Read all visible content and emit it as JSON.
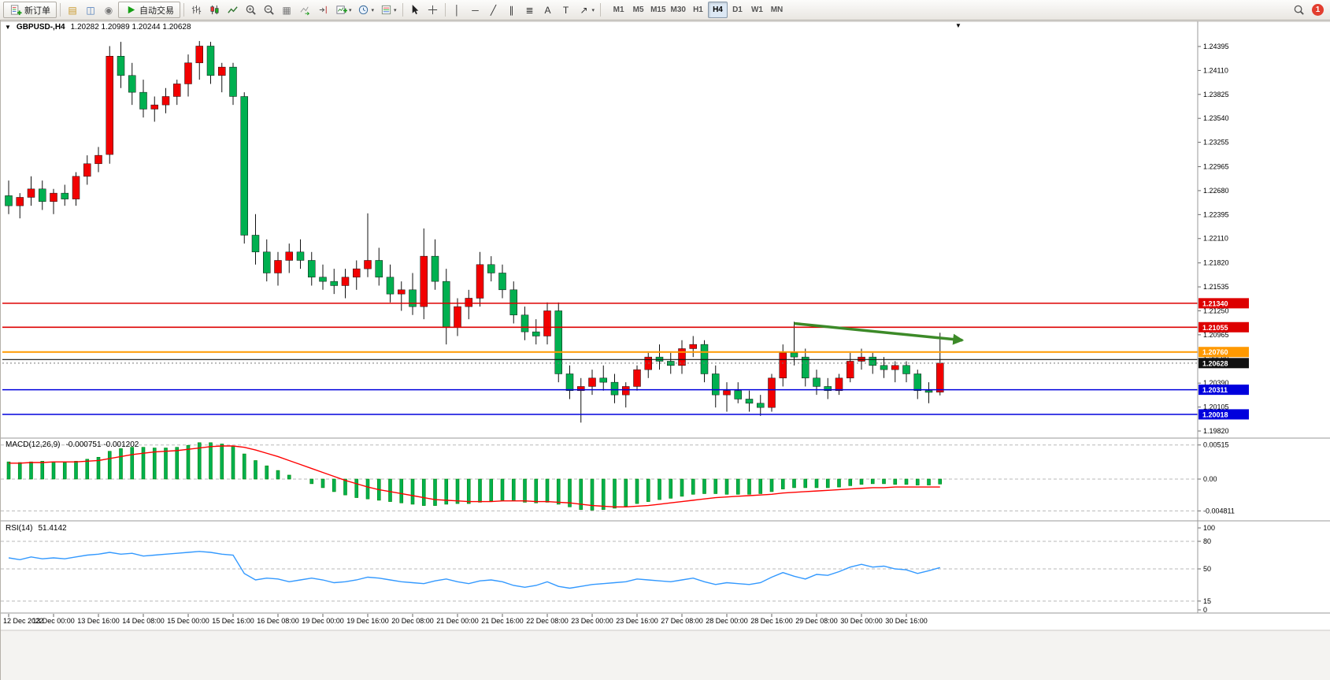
{
  "toolbar": {
    "new_order_label": "新订单",
    "auto_trading_label": "自动交易",
    "timeframes": [
      "M1",
      "M5",
      "M15",
      "M30",
      "H1",
      "H4",
      "D1",
      "W1",
      "MN"
    ],
    "active_timeframe": "H4",
    "notification_count": "1",
    "icon_buttons": [
      "new-order",
      "market-watch",
      "data-window",
      "navigator",
      "auto-trading",
      "bar-chart",
      "candlestick-chart",
      "line-chart",
      "zoom-in",
      "zoom-out",
      "tile-windows",
      "auto-scroll",
      "chart-shift",
      "new-chart",
      "periods",
      "templates",
      "cursor",
      "crosshair",
      "vertical-line",
      "horizontal-line",
      "trendline",
      "equidistant-channel",
      "fibonacci",
      "text",
      "text-label",
      "arrows",
      "search",
      "notifications"
    ]
  },
  "chart": {
    "title_symbol": "GBPUSD-,H4",
    "title_ohlc": "1.20282 1.20989 1.20244 1.20628",
    "macd_label": "MACD(12,26,9)",
    "macd_values": "-0.000751 -0.001202",
    "rsi_label": "RSI(14)",
    "rsi_value": "51.4142",
    "price_axis": [
      "1.24395",
      "1.24110",
      "1.23825",
      "1.23540",
      "1.23255",
      "1.22965",
      "1.22680",
      "1.22395",
      "1.22110",
      "1.21820",
      "1.21535",
      "1.21250",
      "1.20965",
      "1.20680",
      "1.20390",
      "1.20105",
      "1.19820"
    ],
    "price_tags": [
      {
        "text": "1.21340",
        "price": 1.2134,
        "bg": "#DD0000"
      },
      {
        "text": "1.21055",
        "price": 1.21055,
        "bg": "#DD0000"
      },
      {
        "text": "1.20760",
        "price": 1.2076,
        "bg": "#FF9900"
      },
      {
        "text": "1.20628",
        "price": 1.20628,
        "bg": "#111111"
      },
      {
        "text": "1.20311",
        "price": 1.20311,
        "bg": "#0000DD"
      },
      {
        "text": "1.20018",
        "price": 1.20018,
        "bg": "#0000DD"
      }
    ],
    "time_axis": [
      "12 Dec 2022",
      "13 Dec 00:00",
      "13 Dec 16:00",
      "14 Dec 08:00",
      "15 Dec 00:00",
      "15 Dec 16:00",
      "16 Dec 08:00",
      "19 Dec 00:00",
      "19 Dec 16:00",
      "20 Dec 08:00",
      "21 Dec 00:00",
      "21 Dec 16:00",
      "22 Dec 08:00",
      "23 Dec 00:00",
      "23 Dec 16:00",
      "27 Dec 08:00",
      "28 Dec 00:00",
      "28 Dec 16:00",
      "29 Dec 08:00",
      "30 Dec 00:00",
      "30 Dec 16:00"
    ]
  },
  "chart_data": {
    "type": "candlestick",
    "symbol": "GBPUSD-",
    "timeframe": "H4",
    "current_bar": {
      "open": 1.20282,
      "high": 1.20989,
      "low": 1.20244,
      "close": 1.20628
    },
    "candles": [
      [
        1.2262,
        1.228,
        1.224,
        1.225
      ],
      [
        1.225,
        1.2265,
        1.2235,
        1.226
      ],
      [
        1.226,
        1.2285,
        1.225,
        1.227
      ],
      [
        1.227,
        1.228,
        1.2245,
        1.2255
      ],
      [
        1.2255,
        1.227,
        1.224,
        1.2265
      ],
      [
        1.2265,
        1.2275,
        1.225,
        1.2258
      ],
      [
        1.2258,
        1.229,
        1.225,
        1.2285
      ],
      [
        1.2285,
        1.231,
        1.2275,
        1.23
      ],
      [
        1.23,
        1.232,
        1.229,
        1.231
      ],
      [
        1.2311,
        1.244,
        1.23,
        1.2428
      ],
      [
        1.2428,
        1.2445,
        1.239,
        1.2405
      ],
      [
        1.2405,
        1.242,
        1.237,
        1.2385
      ],
      [
        1.2385,
        1.24,
        1.2355,
        1.2365
      ],
      [
        1.2365,
        1.238,
        1.235,
        1.237
      ],
      [
        1.237,
        1.239,
        1.236,
        1.238
      ],
      [
        1.238,
        1.24,
        1.237,
        1.2395
      ],
      [
        1.2395,
        1.243,
        1.238,
        1.242
      ],
      [
        1.242,
        1.2446,
        1.24,
        1.244
      ],
      [
        1.244,
        1.2445,
        1.2395,
        1.2405
      ],
      [
        1.2405,
        1.242,
        1.2385,
        1.2415
      ],
      [
        1.2415,
        1.242,
        1.237,
        1.238
      ],
      [
        1.238,
        1.2385,
        1.2205,
        1.2215
      ],
      [
        1.2215,
        1.224,
        1.218,
        1.2195
      ],
      [
        1.2195,
        1.221,
        1.216,
        1.217
      ],
      [
        1.217,
        1.2195,
        1.2155,
        1.2185
      ],
      [
        1.2185,
        1.2205,
        1.217,
        1.2195
      ],
      [
        1.2195,
        1.221,
        1.2175,
        1.2185
      ],
      [
        1.2185,
        1.2195,
        1.2155,
        1.2165
      ],
      [
        1.2165,
        1.218,
        1.215,
        1.216
      ],
      [
        1.216,
        1.2175,
        1.2145,
        1.2155
      ],
      [
        1.2155,
        1.2175,
        1.214,
        1.2165
      ],
      [
        1.2165,
        1.2185,
        1.215,
        1.2175
      ],
      [
        1.2175,
        1.2241,
        1.2165,
        1.2185
      ],
      [
        1.2185,
        1.22,
        1.2155,
        1.2165
      ],
      [
        1.2165,
        1.218,
        1.2135,
        1.2145
      ],
      [
        1.2145,
        1.216,
        1.2125,
        1.215
      ],
      [
        1.215,
        1.217,
        1.212,
        1.213
      ],
      [
        1.213,
        1.2223,
        1.2115,
        1.219
      ],
      [
        1.219,
        1.221,
        1.215,
        1.216
      ],
      [
        1.216,
        1.2175,
        1.2085,
        1.2105
      ],
      [
        1.2105,
        1.214,
        1.2095,
        1.213
      ],
      [
        1.213,
        1.215,
        1.2115,
        1.214
      ],
      [
        1.214,
        1.2195,
        1.213,
        1.218
      ],
      [
        1.218,
        1.219,
        1.216,
        1.217
      ],
      [
        1.217,
        1.218,
        1.214,
        1.215
      ],
      [
        1.215,
        1.216,
        1.211,
        1.212
      ],
      [
        1.212,
        1.213,
        1.209,
        1.21
      ],
      [
        1.21,
        1.2115,
        1.2085,
        1.2095
      ],
      [
        1.2095,
        1.2135,
        1.2085,
        1.2125
      ],
      [
        1.2125,
        1.2135,
        1.204,
        1.205
      ],
      [
        1.205,
        1.206,
        1.202,
        1.203
      ],
      [
        1.203,
        1.2045,
        1.1992,
        1.2035
      ],
      [
        1.2035,
        1.2055,
        1.2025,
        1.2045
      ],
      [
        1.2045,
        1.206,
        1.203,
        1.204
      ],
      [
        1.204,
        1.205,
        1.2015,
        1.2025
      ],
      [
        1.2025,
        1.204,
        1.201,
        1.2035
      ],
      [
        1.2035,
        1.206,
        1.203,
        1.2055
      ],
      [
        1.2055,
        1.2075,
        1.2045,
        1.207
      ],
      [
        1.207,
        1.2085,
        1.2055,
        1.2065
      ],
      [
        1.2065,
        1.2075,
        1.205,
        1.206
      ],
      [
        1.206,
        1.209,
        1.205,
        1.208
      ],
      [
        1.208,
        1.2095,
        1.207,
        1.2085
      ],
      [
        1.2085,
        1.209,
        1.204,
        1.205
      ],
      [
        1.205,
        1.206,
        1.201,
        1.2025
      ],
      [
        1.2025,
        1.204,
        1.2005,
        1.203
      ],
      [
        1.203,
        1.204,
        1.2015,
        1.202
      ],
      [
        1.202,
        1.203,
        1.2005,
        1.2015
      ],
      [
        1.2015,
        1.2025,
        1.2,
        1.201
      ],
      [
        1.201,
        1.205,
        1.2005,
        1.2045
      ],
      [
        1.2045,
        1.2085,
        1.2035,
        1.2075
      ],
      [
        1.2075,
        1.2112,
        1.206,
        1.207
      ],
      [
        1.207,
        1.208,
        1.2035,
        1.2045
      ],
      [
        1.2045,
        1.2055,
        1.2025,
        1.2035
      ],
      [
        1.2035,
        1.2045,
        1.202,
        1.203
      ],
      [
        1.203,
        1.205,
        1.2025,
        1.2045
      ],
      [
        1.2045,
        1.2075,
        1.204,
        1.2065
      ],
      [
        1.2065,
        1.208,
        1.2055,
        1.207
      ],
      [
        1.207,
        1.2075,
        1.205,
        1.206
      ],
      [
        1.206,
        1.207,
        1.2045,
        1.2055
      ],
      [
        1.2055,
        1.2065,
        1.204,
        1.206
      ],
      [
        1.206,
        1.2065,
        1.204,
        1.205
      ],
      [
        1.205,
        1.2055,
        1.202,
        1.203
      ],
      [
        1.203,
        1.204,
        1.2015,
        1.2028
      ],
      [
        1.20282,
        1.20989,
        1.20244,
        1.20628
      ]
    ],
    "hlines": [
      {
        "price": 1.2134,
        "color": "#DD0000",
        "width": 1.6,
        "name": "resistance-line-1"
      },
      {
        "price": 1.21055,
        "color": "#DD0000",
        "width": 1.6,
        "name": "resistance-line-2"
      },
      {
        "price": 1.2076,
        "color": "#FF9900",
        "width": 2,
        "name": "pivot-line-orange"
      },
      {
        "price": 1.2067,
        "color": "#111111",
        "width": 1.2,
        "name": "black-horizontal-line"
      },
      {
        "price": 1.20311,
        "color": "#0000DD",
        "width": 1.6,
        "name": "support-line-1"
      },
      {
        "price": 1.20018,
        "color": "#0000DD",
        "width": 1.6,
        "name": "support-line-2"
      }
    ],
    "arrow": {
      "from_bar": 71,
      "from_price": 1.211,
      "to_bar": 86,
      "to_price": 1.209
    },
    "indicators": {
      "macd": {
        "name": "MACD(12,26,9)",
        "main_last": -0.000751,
        "signal_last": -0.001202,
        "axis": [
          {
            "text": "0.00515",
            "value": 0.00515
          },
          {
            "text": "0.00",
            "value": 0
          },
          {
            "text": "-0.004811",
            "value": -0.004811
          }
        ],
        "histogram": [
          0.0026,
          0.0025,
          0.0026,
          0.0027,
          0.0026,
          0.0025,
          0.0027,
          0.003,
          0.0033,
          0.0042,
          0.0046,
          0.0048,
          0.0048,
          0.0047,
          0.0047,
          0.0048,
          0.0051,
          0.0055,
          0.0055,
          0.0053,
          0.005,
          0.0038,
          0.0028,
          0.002,
          0.0013,
          0.0006,
          0.0,
          -0.0007,
          -0.0013,
          -0.0019,
          -0.0024,
          -0.0028,
          -0.003,
          -0.0032,
          -0.0034,
          -0.0036,
          -0.0038,
          -0.004,
          -0.004,
          -0.0038,
          -0.0037,
          -0.0037,
          -0.0035,
          -0.0033,
          -0.0032,
          -0.0033,
          -0.0035,
          -0.0036,
          -0.0035,
          -0.0038,
          -0.0042,
          -0.0046,
          -0.0047,
          -0.0046,
          -0.0044,
          -0.0041,
          -0.0037,
          -0.0034,
          -0.0031,
          -0.0029,
          -0.0026,
          -0.0023,
          -0.0022,
          -0.0022,
          -0.0023,
          -0.0023,
          -0.0023,
          -0.0022,
          -0.0019,
          -0.0015,
          -0.0013,
          -0.0013,
          -0.0013,
          -0.0013,
          -0.0012,
          -0.001,
          -0.0008,
          -0.0007,
          -0.0007,
          -0.0008,
          -0.0008,
          -0.0009,
          -0.0009,
          -0.000751
        ],
        "signal": [
          0.0024,
          0.0024,
          0.0025,
          0.0025,
          0.0026,
          0.0026,
          0.0026,
          0.0027,
          0.0028,
          0.0031,
          0.0034,
          0.0037,
          0.0039,
          0.0041,
          0.0042,
          0.0043,
          0.0045,
          0.0047,
          0.0049,
          0.005,
          0.005,
          0.0048,
          0.0044,
          0.0039,
          0.0034,
          0.0028,
          0.0022,
          0.0016,
          0.001,
          0.0004,
          -0.0002,
          -0.0007,
          -0.0012,
          -0.0016,
          -0.0019,
          -0.0022,
          -0.0025,
          -0.0028,
          -0.0031,
          -0.0032,
          -0.0033,
          -0.0034,
          -0.0034,
          -0.0034,
          -0.0033,
          -0.0033,
          -0.0033,
          -0.0034,
          -0.0034,
          -0.0035,
          -0.0036,
          -0.0038,
          -0.004,
          -0.0041,
          -0.0042,
          -0.0042,
          -0.0041,
          -0.004,
          -0.0038,
          -0.0036,
          -0.0034,
          -0.0032,
          -0.003,
          -0.0028,
          -0.0027,
          -0.0026,
          -0.0025,
          -0.0024,
          -0.0023,
          -0.0021,
          -0.002,
          -0.0019,
          -0.0018,
          -0.0017,
          -0.0016,
          -0.0015,
          -0.0014,
          -0.0013,
          -0.0013,
          -0.0012,
          -0.0012,
          -0.0012,
          -0.0012,
          -0.001202
        ]
      },
      "rsi": {
        "name": "RSI(14)",
        "last": 51.4142,
        "levels": [
          80,
          50,
          15
        ],
        "axis_labels": [
          {
            "text": "100",
            "value": 100
          },
          {
            "text": "80",
            "value": 80
          },
          {
            "text": "50",
            "value": 50
          },
          {
            "text": "15",
            "value": 15
          },
          {
            "text": "0",
            "value": 0
          }
        ],
        "values": [
          62,
          60,
          63,
          61,
          62,
          61,
          63,
          65,
          66,
          68,
          66,
          67,
          64,
          65,
          66,
          67,
          68,
          69,
          68,
          66,
          65,
          45,
          38,
          40,
          39,
          36,
          38,
          40,
          38,
          35,
          36,
          38,
          41,
          40,
          38,
          36,
          35,
          34,
          37,
          39,
          36,
          34,
          37,
          38,
          36,
          32,
          30,
          32,
          36,
          31,
          29,
          31,
          33,
          34,
          35,
          36,
          39,
          38,
          37,
          36,
          38,
          40,
          36,
          33,
          35,
          34,
          33,
          35,
          41,
          46,
          42,
          39,
          44,
          43,
          47,
          52,
          55,
          52,
          53,
          50,
          49,
          45,
          48,
          51.4142
        ]
      }
    }
  },
  "colors": {
    "bull": "#F20000",
    "bear": "#00B050",
    "macd_bar": "#00B050",
    "macd_signal": "#FF0000",
    "rsi_line": "#3399FF",
    "arrow": "#3C8A28",
    "hline_red": "#DD0000",
    "hline_blue": "#0000DD",
    "hline_orange": "#FF9900"
  }
}
